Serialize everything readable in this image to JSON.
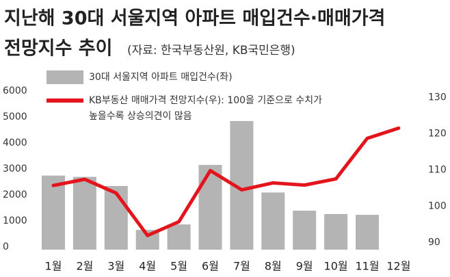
{
  "chart_data": {
    "type": "bar-line",
    "title": "지난해 30대 서울지역 아파트 매입건수·매매가격",
    "subtitle": "전망지수 추이",
    "source": "(자료: 한국부동산원, KB국민은행)",
    "categories": [
      "1월",
      "2월",
      "3월",
      "4월",
      "5월",
      "6월",
      "7월",
      "8월",
      "9월",
      "10월",
      "11월",
      "12월"
    ],
    "series": [
      {
        "name": "30대 서울지역 아파트 매입건수(좌)",
        "type": "bar",
        "color": "#b4b4b4",
        "axis": "y",
        "values": [
          2850,
          2800,
          2450,
          760,
          970,
          3260,
          4950,
          2200,
          1500,
          1370,
          1340,
          null
        ]
      },
      {
        "name": "KB부동산 매매가격 전망지수(우): 100을 기준으로 수치가",
        "type": "line",
        "color": "#e3141c",
        "axis": "y2",
        "values": [
          105.7,
          107.4,
          103.6,
          91.9,
          95.7,
          109.8,
          104.5,
          106.4,
          105.8,
          107.5,
          118.7,
          121.5
        ]
      }
    ],
    "annotation": "높을수록 상승의견이 많음",
    "ylim": [
      0,
      6000
    ],
    "yticks": [
      0,
      1000,
      2000,
      3000,
      4000,
      5000,
      6000
    ],
    "y2lim": [
      88,
      131
    ],
    "y2ticks": [
      90,
      100,
      110,
      120,
      130
    ],
    "grid": false
  }
}
